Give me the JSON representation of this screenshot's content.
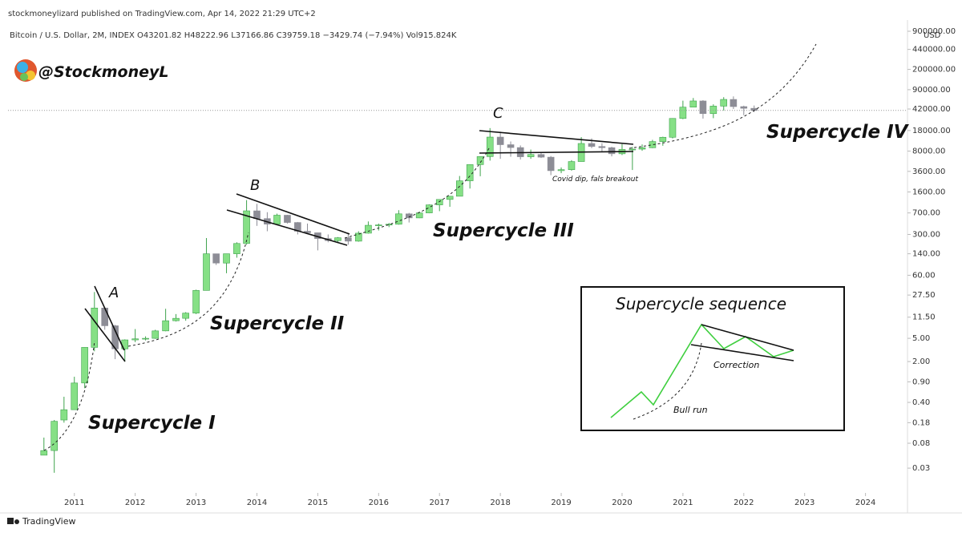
{
  "chart_data": {
    "type": "candlestick",
    "published": "stockmoneylizard published on TradingView.com, Apr 14, 2022 21:29 UTC+2",
    "symbol_line": "Bitcoin / U.S. Dollar, 2M, INDEX O43201.82 H48222.96 L37166.86 C39759.18 −3429.74 (−7.94%) Vol915.824K",
    "watermark": "@StockmoneyL",
    "currency": "USD",
    "footer": "TradingView",
    "annotations": {
      "sc1": "Supercycle I",
      "sc2": "Supercycle II",
      "sc3": "Supercycle III",
      "sc4": "Supercycle IV",
      "a": "A",
      "b": "B",
      "c": "C",
      "covid": "Covid dip, fals breakout",
      "inset_title": "Supercycle sequence",
      "correction": "Correction",
      "bull": "Bull run"
    },
    "log_y": true,
    "grid": false,
    "up_color": "#86e086",
    "up_border": "#3fa34d",
    "down_color": "#8d8d96",
    "xlim": [
      2009.91,
      2024.69
    ],
    "xticks": [
      2011,
      2012,
      2013,
      2014,
      2015,
      2016,
      2017,
      2018,
      2019,
      2020,
      2021,
      2022,
      2023,
      2024
    ],
    "ylim": [
      0.0113,
      1400000
    ],
    "yticks": [
      {
        "value": 900000,
        "label": "900000.00"
      },
      {
        "value": 440000,
        "label": "440000.00"
      },
      {
        "value": 200000,
        "label": "200000.00"
      },
      {
        "value": 90000,
        "label": "90000.00"
      },
      {
        "value": 42000,
        "label": "42000.00"
      },
      {
        "value": 18000,
        "label": "18000.00"
      },
      {
        "value": 8000,
        "label": "8000.00"
      },
      {
        "value": 3600,
        "label": "3600.00"
      },
      {
        "value": 1600,
        "label": "1600.00"
      },
      {
        "value": 700,
        "label": "700.00"
      },
      {
        "value": 300,
        "label": "300.00"
      },
      {
        "value": 140,
        "label": "140.00"
      },
      {
        "value": 60,
        "label": "60.00"
      },
      {
        "value": 27.5,
        "label": "27.50"
      },
      {
        "value": 11.5,
        "label": "11.50"
      },
      {
        "value": 5,
        "label": "5.00"
      },
      {
        "value": 2,
        "label": "2.00"
      },
      {
        "value": 0.9,
        "label": "0.90"
      },
      {
        "value": 0.4,
        "label": "0.40"
      },
      0.18,
      0.08,
      0.03
    ],
    "x": [
      2010.5,
      2010.67,
      2010.83,
      2011,
      2011.17,
      2011.33,
      2011.5,
      2011.67,
      2011.83,
      2012,
      2012.17,
      2012.33,
      2012.5,
      2012.67,
      2012.83,
      2013,
      2013.17,
      2013.33,
      2013.5,
      2013.67,
      2013.83,
      2014,
      2014.17,
      2014.33,
      2014.5,
      2014.67,
      2014.83,
      2015,
      2015.17,
      2015.33,
      2015.5,
      2015.67,
      2015.83,
      2016,
      2016.17,
      2016.33,
      2016.5,
      2016.67,
      2016.83,
      2017,
      2017.17,
      2017.33,
      2017.5,
      2017.67,
      2017.83,
      2018,
      2018.17,
      2018.33,
      2018.5,
      2018.67,
      2018.83,
      2019,
      2019.17,
      2019.33,
      2019.5,
      2019.67,
      2019.83,
      2020,
      2020.17,
      2020.33,
      2020.5,
      2020.67,
      2020.83,
      2021,
      2021.17,
      2021.33,
      2021.5,
      2021.67,
      2021.83,
      2022,
      2022.17
    ],
    "open": [
      0.05,
      0.06,
      0.2,
      0.3,
      0.86,
      3.5,
      16.5,
      8.2,
      3.3,
      4.7,
      4.9,
      5,
      6.7,
      10,
      11,
      13.5,
      33,
      140,
      97,
      140,
      210,
      760,
      560,
      450,
      640,
      480,
      340,
      320,
      255,
      235,
      263,
      230,
      315,
      430,
      436,
      448,
      675,
      575,
      700,
      960,
      1190,
      1350,
      2480,
      4700,
      6450,
      13900,
      10300,
      9200,
      6400,
      7000,
      6300,
      3700,
      3850,
      5300,
      10800,
      9600,
      9150,
      7200,
      8550,
      8650,
      9140,
      11650,
      13800,
      28990,
      45200,
      57700,
      35040,
      47100,
      61300,
      46200,
      43201.82
    ],
    "high": [
      0.1,
      0.2,
      0.5,
      1.1,
      3.5,
      31,
      17,
      8.5,
      4.8,
      7.2,
      5.4,
      7,
      16,
      13,
      14,
      34,
      260,
      140,
      140,
      220,
      1160,
      1000,
      720,
      680,
      650,
      490,
      460,
      320,
      300,
      270,
      320,
      340,
      500,
      460,
      470,
      780,
      700,
      740,
      980,
      1200,
      1360,
      3000,
      4750,
      6470,
      19800,
      17200,
      11700,
      10000,
      8500,
      7400,
      6600,
      4200,
      5600,
      13900,
      13200,
      10900,
      9500,
      10500,
      9460,
      10400,
      12470,
      14100,
      29300,
      58350,
      64850,
      59500,
      50500,
      67000,
      69000,
      47900,
      48222.96
    ],
    "low": [
      0.05,
      0.025,
      0.18,
      0.3,
      0.7,
      3,
      7,
      2.2,
      2,
      4.3,
      4.6,
      4.9,
      6.6,
      9.7,
      10,
      13,
      33,
      90,
      65,
      120,
      200,
      420,
      340,
      430,
      460,
      300,
      310,
      160,
      220,
      215,
      200,
      225,
      310,
      350,
      400,
      440,
      480,
      570,
      690,
      750,
      890,
      1350,
      1830,
      2970,
      5500,
      5900,
      6400,
      5750,
      5900,
      6100,
      3100,
      3350,
      3700,
      5300,
      9000,
      7700,
      6500,
      6850,
      3800,
      8100,
      8990,
      9880,
      13200,
      28130,
      44950,
      28800,
      29300,
      39600,
      42000,
      32950,
      37166.86
    ],
    "close": [
      0.06,
      0.19,
      0.3,
      0.86,
      3.5,
      16.5,
      8.2,
      3.3,
      4.7,
      4.9,
      5,
      6.7,
      10,
      11,
      13.5,
      33,
      140,
      97,
      140,
      210,
      760,
      560,
      450,
      640,
      480,
      340,
      320,
      255,
      235,
      263,
      230,
      315,
      430,
      436,
      448,
      675,
      575,
      700,
      960,
      1190,
      1350,
      2480,
      4700,
      6450,
      13900,
      10300,
      9200,
      6400,
      7000,
      6300,
      3700,
      3850,
      5300,
      10800,
      9600,
      9150,
      7200,
      8550,
      8650,
      9140,
      11650,
      13800,
      28990,
      45200,
      57700,
      35040,
      47100,
      61300,
      46200,
      43190,
      39759.18
    ]
  }
}
